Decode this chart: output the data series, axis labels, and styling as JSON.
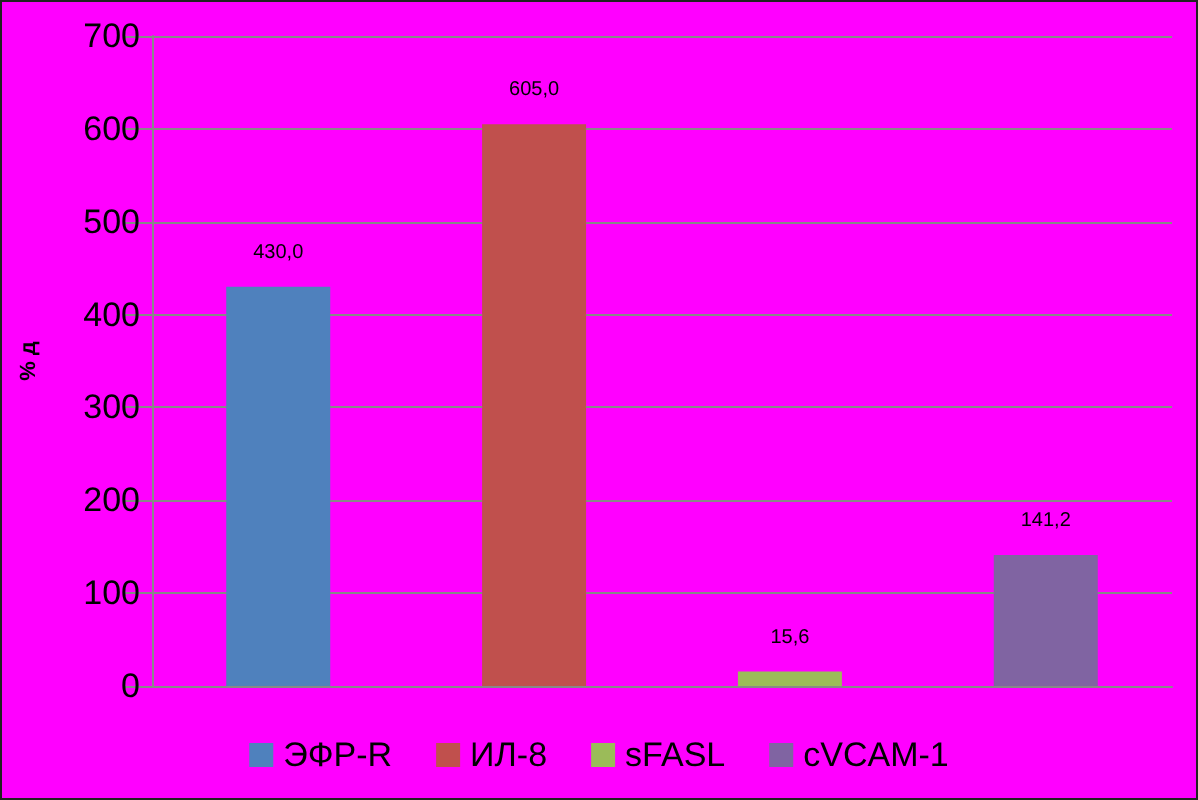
{
  "chart_data": {
    "type": "bar",
    "ylabel": "% д",
    "categories": [
      null
    ],
    "series": [
      {
        "name": "ЭФР-R",
        "color": "#4f81bd",
        "values": [
          430.0
        ],
        "value_labels": [
          "430,0"
        ]
      },
      {
        "name": "ИЛ-8",
        "color": "#c0504d",
        "values": [
          605.0
        ],
        "value_labels": [
          "605,0"
        ]
      },
      {
        "name": "sFASL",
        "color": "#9bbb59",
        "values": [
          15.6
        ],
        "value_labels": [
          "15,6"
        ]
      },
      {
        "name": "cVCAM-1",
        "color": "#8064a2",
        "values": [
          141.2
        ],
        "value_labels": [
          "141,2"
        ]
      }
    ],
    "ylim": [
      0,
      700
    ],
    "yticks": [
      0,
      100,
      200,
      300,
      400,
      500,
      600,
      700
    ],
    "grid": "y",
    "legend": "bottom"
  }
}
